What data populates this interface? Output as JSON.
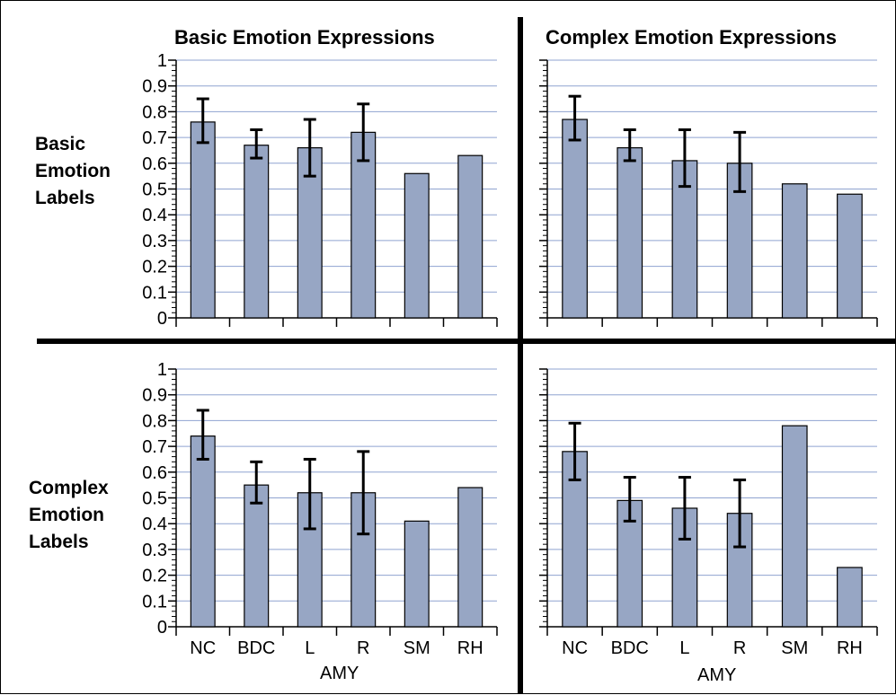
{
  "column_titles": [
    "Basic Emotion Expressions",
    "Complex Emotion Expressions"
  ],
  "row_labels": [
    [
      "Basic",
      "Emotion",
      "Labels"
    ],
    [
      "Complex",
      "Emotion",
      "Labels"
    ]
  ],
  "x_group_label": "AMY",
  "colors": {
    "bar_fill": "#97a6c4",
    "bar_stroke": "#000000",
    "grid": "#8fa3d0",
    "axis": "#000000"
  },
  "chart_data": [
    {
      "type": "bar",
      "panel": "top-left",
      "categories": [
        "NC",
        "BDC",
        "L",
        "R",
        "SM",
        "RH"
      ],
      "values": [
        0.76,
        0.67,
        0.66,
        0.72,
        0.56,
        0.63
      ],
      "error_low": [
        0.68,
        0.62,
        0.55,
        0.61,
        null,
        null
      ],
      "error_high": [
        0.85,
        0.73,
        0.77,
        0.83,
        null,
        null
      ],
      "ylim": [
        0,
        1
      ],
      "yticks": [
        "0",
        "0.1",
        "0.2",
        "0.3",
        "0.4",
        "0.5",
        "0.6",
        "0.7",
        "0.8",
        "0.9",
        "1"
      ],
      "show_x_tick_labels": false,
      "grid": true
    },
    {
      "type": "bar",
      "panel": "top-right",
      "categories": [
        "NC",
        "BDC",
        "L",
        "R",
        "SM",
        "RH"
      ],
      "values": [
        0.77,
        0.66,
        0.61,
        0.6,
        0.52,
        0.48
      ],
      "error_low": [
        0.69,
        0.61,
        0.51,
        0.49,
        null,
        null
      ],
      "error_high": [
        0.86,
        0.73,
        0.73,
        0.72,
        null,
        null
      ],
      "ylim": [
        0,
        1
      ],
      "show_x_tick_labels": false,
      "grid": true
    },
    {
      "type": "bar",
      "panel": "bottom-left",
      "categories": [
        "NC",
        "BDC",
        "L",
        "R",
        "SM",
        "RH"
      ],
      "values": [
        0.74,
        0.55,
        0.52,
        0.52,
        0.41,
        0.54
      ],
      "error_low": [
        0.65,
        0.48,
        0.38,
        0.36,
        null,
        null
      ],
      "error_high": [
        0.84,
        0.64,
        0.65,
        0.68,
        null,
        null
      ],
      "ylim": [
        0,
        1
      ],
      "yticks": [
        "0",
        "0.1",
        "0.2",
        "0.3",
        "0.4",
        "0.5",
        "0.6",
        "0.7",
        "0.8",
        "0.9",
        "1"
      ],
      "show_x_tick_labels": true,
      "xlabel": "AMY",
      "grid": true
    },
    {
      "type": "bar",
      "panel": "bottom-right",
      "categories": [
        "NC",
        "BDC",
        "L",
        "R",
        "SM",
        "RH"
      ],
      "values": [
        0.68,
        0.49,
        0.46,
        0.44,
        0.78,
        0.23
      ],
      "error_low": [
        0.57,
        0.41,
        0.34,
        0.31,
        null,
        null
      ],
      "error_high": [
        0.79,
        0.58,
        0.58,
        0.57,
        null,
        null
      ],
      "ylim": [
        0,
        1
      ],
      "show_x_tick_labels": true,
      "xlabel": "AMY",
      "grid": true
    }
  ]
}
